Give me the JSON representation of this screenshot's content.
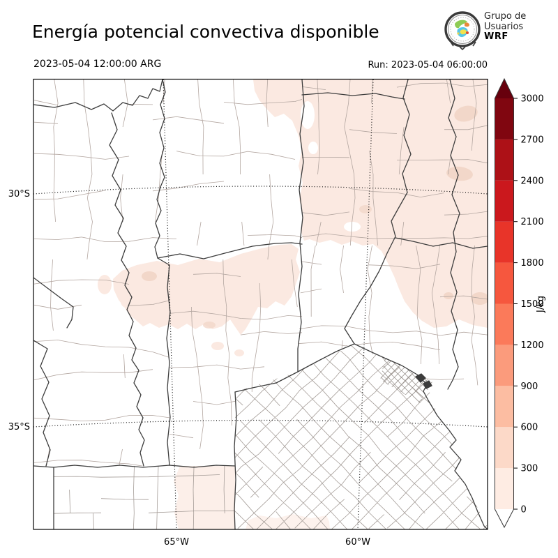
{
  "header": {
    "title": "Energía potencial convectiva disponible",
    "valid_time": "2023-05-04 12:00:00 ARG",
    "run_label": "Run: 2023-05-04 06:00:00",
    "logo": {
      "line1": "Grupo de",
      "line2": "Usuarios",
      "line3": "WRF"
    }
  },
  "map": {
    "x_tick_labels": [
      "65°W",
      "60°W"
    ],
    "y_tick_labels": [
      "30°S",
      "35°S"
    ],
    "frame_color": "#000000",
    "grid_color": "#111111",
    "province_line_color": "#3c3c3c",
    "department_line_color": "#b3a6a0",
    "department_line_color_south": "#a49c97",
    "fill_levels": {
      "level_0_300": "#fbe9e1",
      "level_300_600": "#f2d7c9"
    }
  },
  "colorbar": {
    "unit": "J/kg",
    "tick_values": [
      "0",
      "300",
      "600",
      "900",
      "1200",
      "1500",
      "1800",
      "2100",
      "2400",
      "2700",
      "3000"
    ],
    "segment_colors": [
      "#feece3",
      "#fcd9c8",
      "#fcbda2",
      "#fb9b7c",
      "#fb7a5a",
      "#f6573e",
      "#e83429",
      "#cb181d",
      "#ad1117",
      "#800610"
    ],
    "over_color": "#67000d",
    "under_color": "#ffffff",
    "outline_color": "#333333",
    "tick_color": "#000000"
  },
  "chart_data": {
    "type": "heatmap",
    "title": "Energía potencial convectiva disponible",
    "variable": "CAPE (convective available potential energy)",
    "unit": "J/kg",
    "valid_time": "2023-05-04 12:00:00 ARG",
    "run": "2023-05-04 06:00:00",
    "levels": [
      0,
      300,
      600,
      900,
      1200,
      1500,
      1800,
      2100,
      2400,
      2700,
      3000
    ],
    "palette": "Reds, discrete, extend arrows both ends",
    "x_axis": {
      "label_type": "longitude",
      "ticks": [
        "65°W",
        "60°W"
      ]
    },
    "y_axis": {
      "label_type": "latitude",
      "ticks": [
        "30°S",
        "35°S"
      ]
    },
    "grid": "dotted latitude/longitude graticule",
    "legend_position": "vertical colorbar at right",
    "basemap": "Argentina province borders (dark) with department boundaries (thin gray)",
    "shaded_regions": [
      {
        "value_range": "0-300",
        "area": "large northeast sector: Chaco, Corrientes, north Santa Fe, Entre Ríos down to ~33S near east edge"
      },
      {
        "value_range": "0-300",
        "area": "central belt over Córdoba between ~31S and ~32.5S"
      },
      {
        "value_range": "0-300",
        "area": "faint strip over northeast La Pampa near 36S"
      },
      {
        "value_range": "300-600",
        "area": "small patches near the eastern map edge (~28.5S and ~29.8S) and minor spots in central Córdoba"
      }
    ]
  }
}
